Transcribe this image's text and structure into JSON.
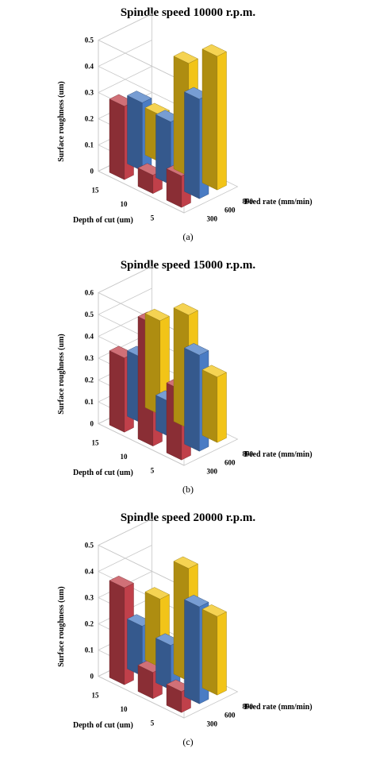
{
  "chart_data": [
    {
      "type": "bar3d",
      "title": "Spindle speed 10000 r.p.m.",
      "caption": "(a)",
      "zlabel": "Surface roughness (um)",
      "xlabel": "Feed rate (mm/min)",
      "ylabel": "Depth of cut (um)",
      "feed_rates": [
        "300",
        "600",
        "800"
      ],
      "depths": [
        "15",
        "10",
        "5"
      ],
      "zticks": [
        "0",
        "0.1",
        "0.2",
        "0.3",
        "0.4",
        "0.5"
      ],
      "zlim": [
        0,
        0.5
      ],
      "values": [
        [
          0.28,
          0.07,
          0.12
        ],
        [
          0.26,
          0.24,
          0.38
        ],
        [
          0.18,
          0.43,
          0.51
        ]
      ],
      "colors": {
        "300": "#c0404a",
        "600": "#4a7cc4",
        "800": "#f2c418"
      }
    },
    {
      "type": "bar3d",
      "title": "Spindle speed 15000 r.p.m.",
      "caption": "(b)",
      "zlabel": "Surface roughness (um)",
      "xlabel": "Feed rate (mm/min)",
      "ylabel": "Depth of cut (um)",
      "feed_rates": [
        "300",
        "600",
        "800"
      ],
      "depths": [
        "15",
        "10",
        "5"
      ],
      "zticks": [
        "0",
        "0.1",
        "0.2",
        "0.3",
        "0.4",
        "0.5",
        "0.6"
      ],
      "zlim": [
        0,
        0.6
      ],
      "values": [
        [
          0.34,
          0.56,
          0.32
        ],
        [
          0.3,
          0.16,
          0.44
        ],
        [
          0.43,
          0.52,
          0.3
        ]
      ],
      "colors": {
        "300": "#c0404a",
        "600": "#4a7cc4",
        "800": "#f2c418"
      }
    },
    {
      "type": "bar3d",
      "title": "Spindle speed 20000 r.p.m.",
      "caption": "(c)",
      "zlabel": "Surface roughness (um)",
      "xlabel": "Feed rate (mm/min)",
      "ylabel": "Depth of cut (um)",
      "feed_rates": [
        "300",
        "600",
        "800"
      ],
      "depths": [
        "15",
        "10",
        "5"
      ],
      "zticks": [
        "0",
        "0.1",
        "0.2",
        "0.3",
        "0.4",
        "0.5"
      ],
      "zlim": [
        0,
        0.5
      ],
      "values": [
        [
          0.37,
          0.1,
          0.08
        ],
        [
          0.19,
          0.17,
          0.37
        ],
        [
          0.26,
          0.43,
          0.3
        ]
      ],
      "colors": {
        "300": "#c0404a",
        "600": "#4a7cc4",
        "800": "#f2c418"
      }
    }
  ]
}
